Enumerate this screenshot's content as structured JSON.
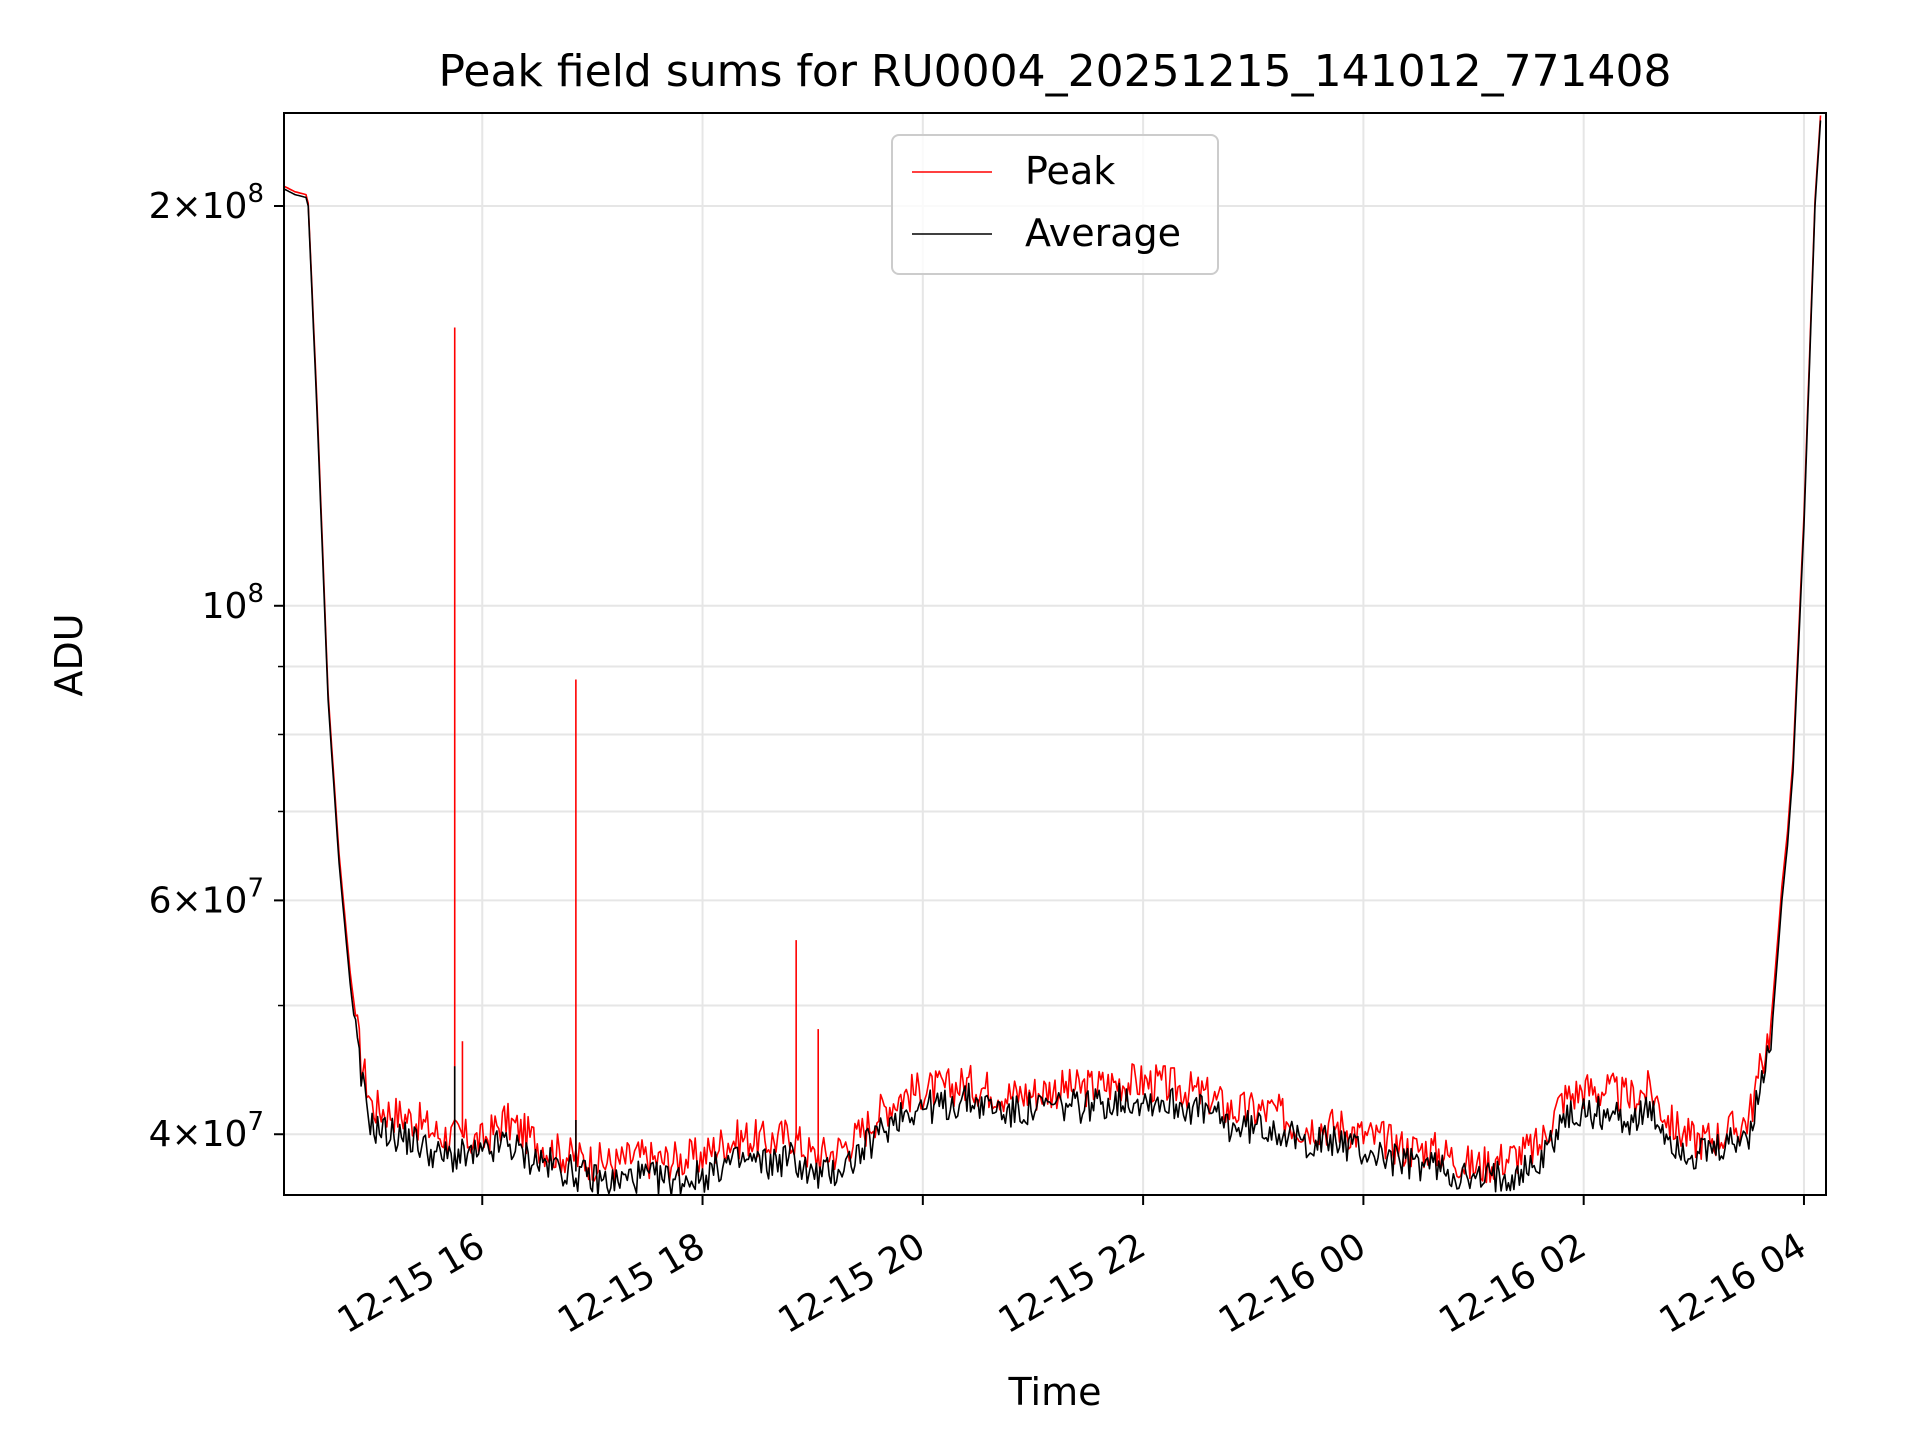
{
  "chart_data": {
    "type": "line",
    "title": "Peak field sums for RU0004_20251215_141012_771408",
    "xlabel": "Time",
    "ylabel": "ADU",
    "yscale": "log",
    "xlim": [
      14.2,
      28.2
    ],
    "ylim": [
      36000000,
      235000000
    ],
    "grid": true,
    "legend": {
      "location": "upper center",
      "entries": [
        {
          "name": "Peak",
          "color": "#ff0000"
        },
        {
          "name": "Average",
          "color": "#000000"
        }
      ]
    },
    "x_ticks": [
      {
        "value": 16,
        "label": "12-15 16"
      },
      {
        "value": 18,
        "label": "12-15 18"
      },
      {
        "value": 20,
        "label": "12-15 20"
      },
      {
        "value": 22,
        "label": "12-15 22"
      },
      {
        "value": 24,
        "label": "12-16 00"
      },
      {
        "value": 26,
        "label": "12-16 02"
      },
      {
        "value": 28,
        "label": "12-16 04"
      }
    ],
    "y_ticks": [
      {
        "value": 40000000,
        "mantissa": "4",
        "exponent": "7"
      },
      {
        "value": 60000000,
        "mantissa": "6",
        "exponent": "7"
      },
      {
        "value": 100000000,
        "mantissa": "",
        "exponent": "8"
      },
      {
        "value": 200000000,
        "mantissa": "2",
        "exponent": "8"
      }
    ],
    "y_minor_ticks": [
      50000000,
      70000000,
      80000000,
      90000000
    ],
    "series": [
      {
        "name": "Average",
        "color": "#000000",
        "x": [
          14.2,
          14.3,
          14.4,
          14.42,
          14.5,
          14.6,
          14.7,
          14.8,
          14.9,
          15.0,
          15.2,
          15.4,
          15.6,
          15.8,
          16.0,
          16.2,
          16.4,
          16.6,
          16.8,
          17.0,
          17.2,
          17.4,
          17.6,
          17.8,
          18.0,
          18.2,
          18.4,
          18.6,
          18.8,
          19.0,
          19.2,
          19.4,
          19.6,
          19.8,
          20.0,
          20.2,
          20.4,
          20.6,
          20.8,
          21.0,
          21.2,
          21.4,
          21.6,
          21.8,
          22.0,
          22.2,
          22.4,
          22.6,
          22.8,
          23.0,
          23.2,
          23.4,
          23.6,
          23.8,
          24.0,
          24.2,
          24.4,
          24.6,
          24.8,
          25.0,
          25.2,
          25.4,
          25.6,
          25.8,
          26.0,
          26.2,
          26.4,
          26.6,
          26.8,
          27.0,
          27.2,
          27.4,
          27.5,
          27.6,
          27.7,
          27.75,
          27.8,
          27.85,
          27.9,
          28.0,
          28.1,
          28.15
        ],
        "values": [
          206000000,
          204000000,
          203000000,
          200000000,
          140000000,
          85000000,
          64000000,
          52000000,
          44000000,
          40500000,
          40000000,
          39500000,
          38500000,
          38500000,
          38500000,
          39500000,
          38500000,
          38000000,
          37500000,
          37000000,
          36800000,
          37200000,
          37000000,
          37000000,
          37200000,
          38000000,
          38200000,
          38000000,
          38500000,
          37200000,
          37500000,
          38500000,
          40000000,
          41500000,
          42000000,
          42000000,
          42500000,
          42000000,
          41500000,
          41800000,
          42000000,
          42000000,
          42200000,
          42500000,
          42500000,
          42300000,
          42000000,
          41500000,
          40500000,
          40500000,
          40500000,
          39500000,
          39500000,
          39500000,
          38800000,
          38500000,
          38000000,
          38000000,
          37500000,
          36800000,
          37200000,
          37500000,
          38000000,
          41000000,
          41500000,
          41500000,
          41000000,
          41500000,
          39500000,
          38500000,
          38800000,
          39500000,
          40000000,
          43000000,
          47000000,
          53000000,
          60000000,
          66000000,
          75000000,
          115000000,
          200000000,
          232000000
        ]
      },
      {
        "name": "Peak",
        "color": "#ff0000",
        "x": [
          14.2,
          14.3,
          14.4,
          14.42,
          14.5,
          14.6,
          14.7,
          14.8,
          14.9,
          15.0,
          15.2,
          15.4,
          15.6,
          15.8,
          16.0,
          16.2,
          16.4,
          16.6,
          16.8,
          17.0,
          17.2,
          17.4,
          17.6,
          17.8,
          18.0,
          18.2,
          18.4,
          18.6,
          18.8,
          19.0,
          19.2,
          19.4,
          19.6,
          19.8,
          20.0,
          20.2,
          20.4,
          20.6,
          20.8,
          21.0,
          21.2,
          21.4,
          21.6,
          21.8,
          22.0,
          22.2,
          22.4,
          22.6,
          22.8,
          23.0,
          23.2,
          23.4,
          23.6,
          23.8,
          24.0,
          24.2,
          24.4,
          24.6,
          24.8,
          25.0,
          25.2,
          25.4,
          25.6,
          25.8,
          26.0,
          26.2,
          26.4,
          26.6,
          26.8,
          27.0,
          27.2,
          27.4,
          27.5,
          27.6,
          27.7,
          27.75,
          27.8,
          27.85,
          27.9,
          28.0,
          28.1,
          28.15
        ],
        "values": [
          207000000,
          205000000,
          204000000,
          201000000,
          142000000,
          86000000,
          65000000,
          53000000,
          45500000,
          42000000,
          41500000,
          41000000,
          40000000,
          39800000,
          39500000,
          41000000,
          40000000,
          39000000,
          38500000,
          38200000,
          38000000,
          38500000,
          38200000,
          38300000,
          38500000,
          39500000,
          39800000,
          39500000,
          40000000,
          38500000,
          38800000,
          39800000,
          41500000,
          42800000,
          43200000,
          43300000,
          43700000,
          43300000,
          42800000,
          43000000,
          43300000,
          43300000,
          43500000,
          43800000,
          43800000,
          43600000,
          43200000,
          42700000,
          41700000,
          41700000,
          41600000,
          40600000,
          40600000,
          40600000,
          39900000,
          39600000,
          39000000,
          39000000,
          38500000,
          37800000,
          38200000,
          38600000,
          39200000,
          42500000,
          43200000,
          43200000,
          42600000,
          43200000,
          40700000,
          39600000,
          39800000,
          40500000,
          41200000,
          44500000,
          48500000,
          54500000,
          61500000,
          67500000,
          76500000,
          117000000,
          202000000,
          234000000
        ]
      }
    ],
    "peak_spikes": [
      {
        "x": 15.75,
        "value": 162000000
      },
      {
        "x": 15.82,
        "value": 47000000
      },
      {
        "x": 16.85,
        "value": 88000000
      },
      {
        "x": 18.85,
        "value": 56000000
      },
      {
        "x": 19.05,
        "value": 48000000
      }
    ],
    "average_spikes": [
      {
        "x": 15.75,
        "value": 45000000
      },
      {
        "x": 16.85,
        "value": 41000000
      }
    ]
  }
}
